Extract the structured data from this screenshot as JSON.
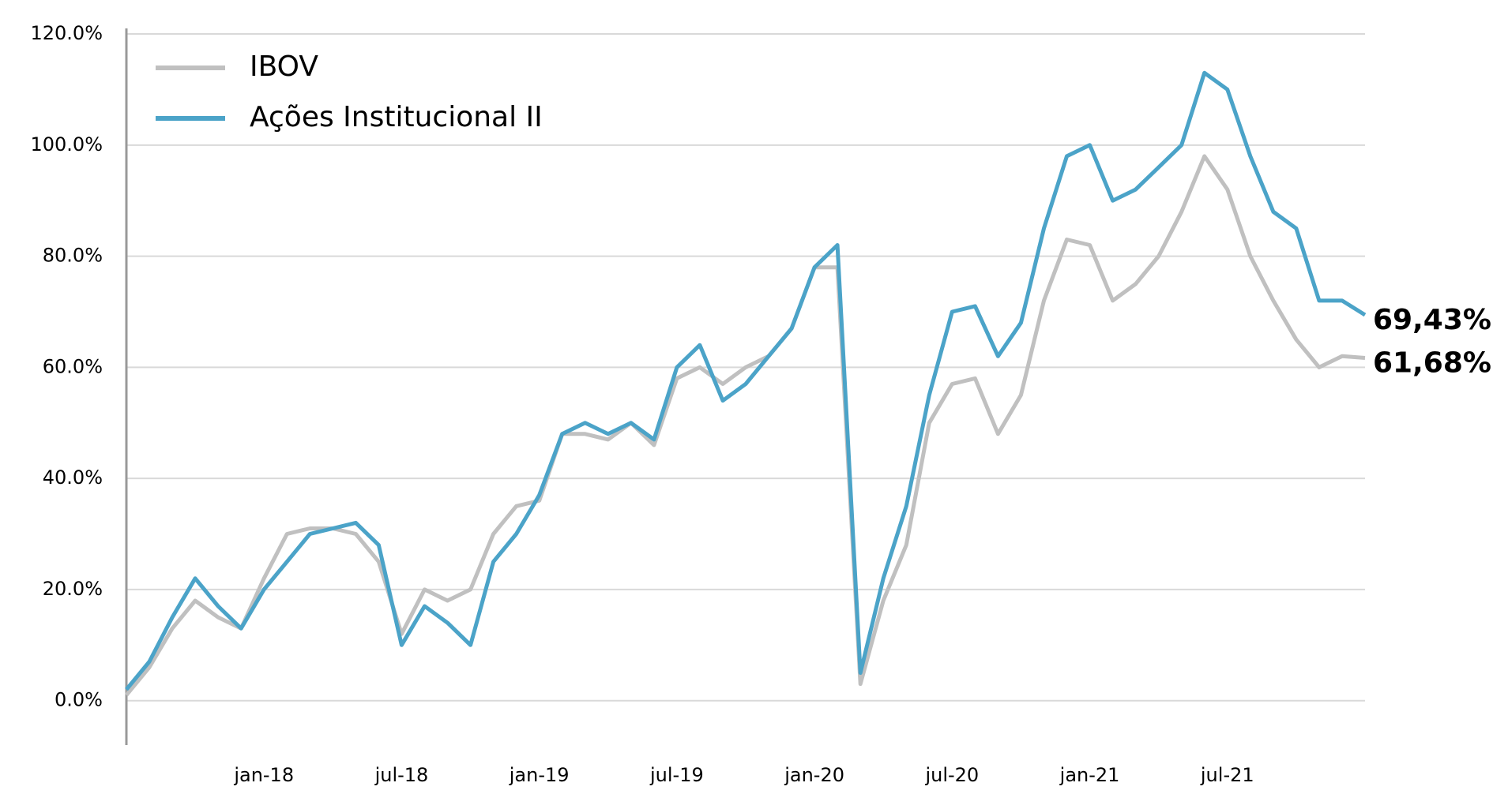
{
  "chart_data": {
    "type": "line",
    "categories": [
      null,
      null,
      null,
      null,
      null,
      null,
      "jan-18",
      null,
      null,
      null,
      null,
      null,
      "jul-18",
      null,
      null,
      null,
      null,
      null,
      "jan-19",
      null,
      null,
      null,
      null,
      null,
      "jul-19",
      null,
      null,
      null,
      null,
      null,
      "jan-20",
      null,
      null,
      null,
      null,
      null,
      "jul-20",
      null,
      null,
      null,
      null,
      null,
      "jan-21",
      null,
      null,
      null,
      null,
      null,
      "jul-21",
      null,
      null,
      null,
      null,
      null,
      null
    ],
    "series": [
      {
        "name": "IBOV",
        "color": "#c0c0c0",
        "values": [
          1,
          6,
          13,
          18,
          15,
          13,
          22,
          30,
          31,
          31,
          30,
          25,
          12,
          20,
          18,
          20,
          30,
          35,
          36,
          48,
          48,
          47,
          50,
          46,
          58,
          60,
          57,
          60,
          62,
          67,
          78,
          78,
          3,
          18,
          28,
          50,
          57,
          58,
          48,
          55,
          72,
          83,
          82,
          72,
          75,
          80,
          88,
          98,
          92,
          80,
          72,
          65,
          60,
          62,
          61.68
        ],
        "value_labels": [
          null,
          null,
          null,
          null,
          null,
          null,
          null,
          null,
          null,
          null,
          null,
          null,
          null,
          null,
          null,
          null,
          null,
          null,
          null,
          null,
          null,
          null,
          null,
          null,
          null,
          null,
          null,
          null,
          null,
          null,
          null,
          null,
          null,
          null,
          null,
          null,
          null,
          null,
          null,
          null,
          null,
          null,
          null,
          null,
          null,
          null,
          null,
          null,
          null,
          null,
          null,
          null,
          null,
          null,
          "61,68%"
        ]
      },
      {
        "name": "Ações Institucional II",
        "color": "#4ba3c8",
        "values": [
          2,
          7,
          15,
          22,
          17,
          13,
          20,
          25,
          30,
          31,
          32,
          28,
          10,
          17,
          14,
          10,
          25,
          30,
          37,
          48,
          50,
          48,
          50,
          47,
          60,
          64,
          54,
          57,
          62,
          67,
          78,
          82,
          5,
          22,
          35,
          55,
          70,
          71,
          62,
          68,
          85,
          98,
          100,
          90,
          92,
          96,
          100,
          113,
          110,
          98,
          88,
          85,
          72,
          72,
          69.43
        ],
        "value_labels": [
          null,
          null,
          null,
          null,
          null,
          null,
          null,
          null,
          null,
          null,
          null,
          null,
          null,
          null,
          null,
          null,
          null,
          null,
          null,
          null,
          null,
          null,
          null,
          null,
          null,
          null,
          null,
          null,
          null,
          null,
          null,
          null,
          null,
          null,
          null,
          null,
          null,
          null,
          null,
          null,
          null,
          null,
          null,
          null,
          null,
          null,
          null,
          null,
          null,
          null,
          null,
          null,
          null,
          null,
          "69,43%"
        ]
      }
    ],
    "ylim": [
      -8,
      121
    ],
    "yticks": [
      {
        "value": 0,
        "label": "0.0%"
      },
      {
        "value": 20,
        "label": "20.0%"
      },
      {
        "value": 40,
        "label": "40.0%"
      },
      {
        "value": 60,
        "label": "60.0%"
      },
      {
        "value": 80,
        "label": "80.0%"
      },
      {
        "value": 100,
        "label": "100.0%"
      },
      {
        "value": 120,
        "label": "120.0%"
      }
    ],
    "grid": true,
    "legend": "upper left"
  }
}
